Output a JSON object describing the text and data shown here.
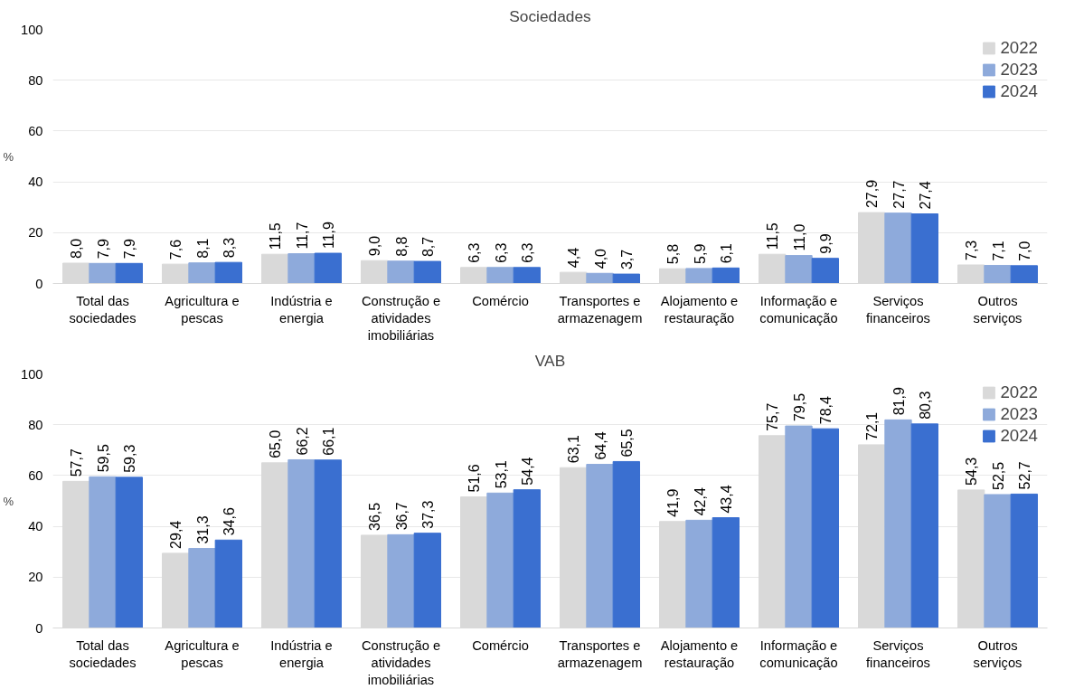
{
  "chart_data": [
    {
      "type": "bar",
      "title": "Sociedades",
      "ylabel": "%",
      "categories": [
        "Total das\nsociedades",
        "Agricultura e\npescas",
        "Indústria e\nenergia",
        "Construção e\natividades\nimobiliárias",
        "Comércio",
        "Transportes e\narmazenagem",
        "Alojamento e\nrestauração",
        "Informação e\ncomunicação",
        "Serviços\nfinanceiros",
        "Outros\nserviços"
      ],
      "ylim": [
        0,
        100
      ],
      "yticks": [
        0,
        20,
        40,
        60,
        80,
        100
      ],
      "grid": "y",
      "legend": "top right",
      "series": [
        {
          "name": "2022",
          "color": "#d9d9d9",
          "values": [
            8.0,
            7.6,
            11.5,
            9.0,
            6.3,
            4.4,
            5.8,
            11.5,
            27.9,
            7.3
          ],
          "value_labels": [
            "8,0",
            "7,6",
            "11,5",
            "9,0",
            "6,3",
            "4,4",
            "5,8",
            "11,5",
            "27,9",
            "7,3"
          ]
        },
        {
          "name": "2023",
          "color": "#8eaadb",
          "values": [
            7.9,
            8.1,
            11.7,
            8.8,
            6.3,
            4.0,
            5.9,
            11.0,
            27.7,
            7.1
          ],
          "value_labels": [
            "7,9",
            "8,1",
            "11,7",
            "8,8",
            "6,3",
            "4,0",
            "5,9",
            "11,0",
            "27,7",
            "7,1"
          ]
        },
        {
          "name": "2024",
          "color": "#3a6fd0",
          "values": [
            7.9,
            8.3,
            11.9,
            8.7,
            6.3,
            3.7,
            6.1,
            9.9,
            27.4,
            7.0
          ],
          "value_labels": [
            "7,9",
            "8,3",
            "11,9",
            "8,7",
            "6,3",
            "3,7",
            "6,1",
            "9,9",
            "27,4",
            "7,0"
          ]
        }
      ]
    },
    {
      "type": "bar",
      "title": "VAB",
      "ylabel": "%",
      "categories": [
        "Total das\nsociedades",
        "Agricultura e\npescas",
        "Indústria e\nenergia",
        "Construção e\natividades\nimobiliárias",
        "Comércio",
        "Transportes e\narmazenagem",
        "Alojamento e\nrestauração",
        "Informação e\ncomunicação",
        "Serviços\nfinanceiros",
        "Outros\nserviços"
      ],
      "ylim": [
        0,
        100
      ],
      "yticks": [
        0,
        20,
        40,
        60,
        80,
        100
      ],
      "grid": "y",
      "legend": "top right",
      "series": [
        {
          "name": "2022",
          "color": "#d9d9d9",
          "values": [
            57.7,
            29.4,
            65.0,
            36.5,
            51.6,
            63.1,
            41.9,
            75.7,
            72.1,
            54.3
          ],
          "value_labels": [
            "57,7",
            "29,4",
            "65,0",
            "36,5",
            "51,6",
            "63,1",
            "41,9",
            "75,7",
            "72,1",
            "54,3"
          ]
        },
        {
          "name": "2023",
          "color": "#8eaadb",
          "values": [
            59.5,
            31.3,
            66.2,
            36.7,
            53.1,
            64.4,
            42.4,
            79.5,
            81.9,
            52.5
          ],
          "value_labels": [
            "59,5",
            "31,3",
            "66,2",
            "36,7",
            "53,1",
            "64,4",
            "42,4",
            "79,5",
            "81,9",
            "52,5"
          ]
        },
        {
          "name": "2024",
          "color": "#3a6fd0",
          "values": [
            59.3,
            34.6,
            66.1,
            37.3,
            54.4,
            65.5,
            43.4,
            78.4,
            80.3,
            52.7
          ],
          "value_labels": [
            "59,3",
            "34,6",
            "66,1",
            "37,3",
            "54,4",
            "65,5",
            "43,4",
            "78,4",
            "80,3",
            "52,7"
          ]
        }
      ]
    }
  ]
}
